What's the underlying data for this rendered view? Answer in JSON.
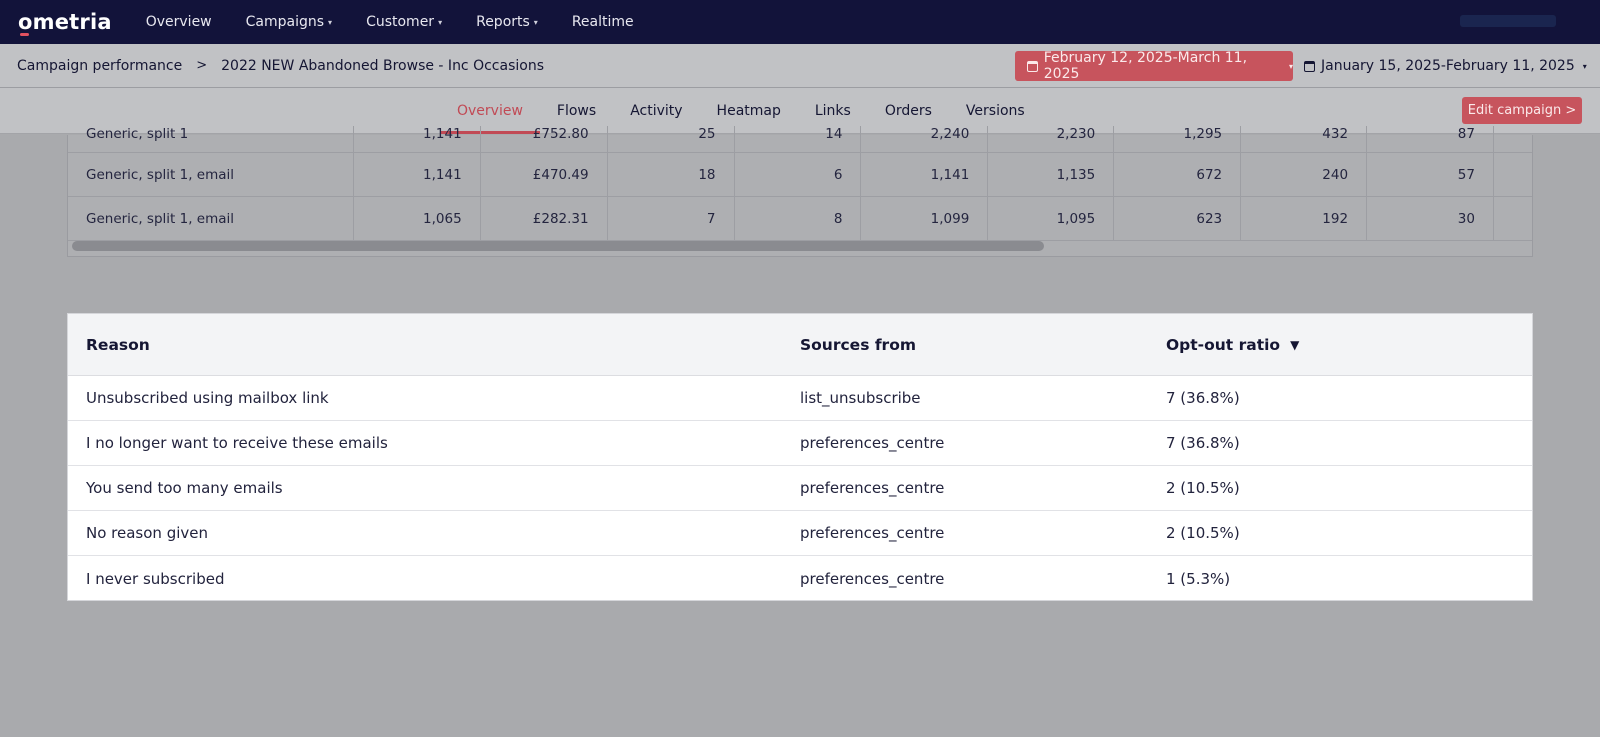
{
  "nav": {
    "logo": "ometria",
    "items": [
      {
        "label": "Overview",
        "dropdown": false
      },
      {
        "label": "Campaigns",
        "dropdown": true
      },
      {
        "label": "Customer",
        "dropdown": true
      },
      {
        "label": "Reports",
        "dropdown": true
      },
      {
        "label": "Realtime",
        "dropdown": false
      }
    ],
    "caret": "▾"
  },
  "breadcrumb": {
    "parent": "Campaign performance",
    "separator": ">",
    "current": "2022 NEW Abandoned Browse - Inc Occasions"
  },
  "date_range": {
    "primary": "February 12, 2025-March 11, 2025",
    "comparison": "January 15, 2025-February 11, 2025",
    "caret": "▾"
  },
  "tabs": [
    {
      "label": "Overview",
      "active": true
    },
    {
      "label": "Flows",
      "active": false
    },
    {
      "label": "Activity",
      "active": false
    },
    {
      "label": "Heatmap",
      "active": false
    },
    {
      "label": "Links",
      "active": false
    },
    {
      "label": "Orders",
      "active": false
    },
    {
      "label": "Versions",
      "active": false
    }
  ],
  "edit_campaign_label": "Edit campaign >",
  "upper_table": {
    "rows": [
      {
        "name": "Generic, split 1",
        "values": [
          "1,141",
          "£752.80",
          "25",
          "14",
          "2,240",
          "2,230",
          "1,295",
          "432",
          "87"
        ]
      },
      {
        "name": "Generic, split 1, email",
        "values": [
          "1,141",
          "£470.49",
          "18",
          "6",
          "1,141",
          "1,135",
          "672",
          "240",
          "57"
        ]
      },
      {
        "name": "Generic, split 1, email",
        "values": [
          "1,065",
          "£282.31",
          "7",
          "8",
          "1,099",
          "1,095",
          "623",
          "192",
          "30"
        ]
      }
    ]
  },
  "optout_table": {
    "headers": {
      "reason": "Reason",
      "sources": "Sources from",
      "ratio": "Opt-out ratio",
      "sort_icon": "▼"
    },
    "rows": [
      {
        "reason": "Unsubscribed using mailbox link",
        "source": "list_unsubscribe",
        "ratio": "7 (36.8%)"
      },
      {
        "reason": "I no longer want to receive these emails",
        "source": "preferences_centre",
        "ratio": "7 (36.8%)"
      },
      {
        "reason": "You send too many emails",
        "source": "preferences_centre",
        "ratio": "2 (10.5%)"
      },
      {
        "reason": "No reason given",
        "source": "preferences_centre",
        "ratio": "2 (10.5%)"
      },
      {
        "reason": "I never subscribed",
        "source": "preferences_centre",
        "ratio": "1 (5.3%)"
      }
    ]
  },
  "colors": {
    "nav_bg": "#12133a",
    "accent": "#c7545d",
    "overlay": "#a9aaad"
  }
}
